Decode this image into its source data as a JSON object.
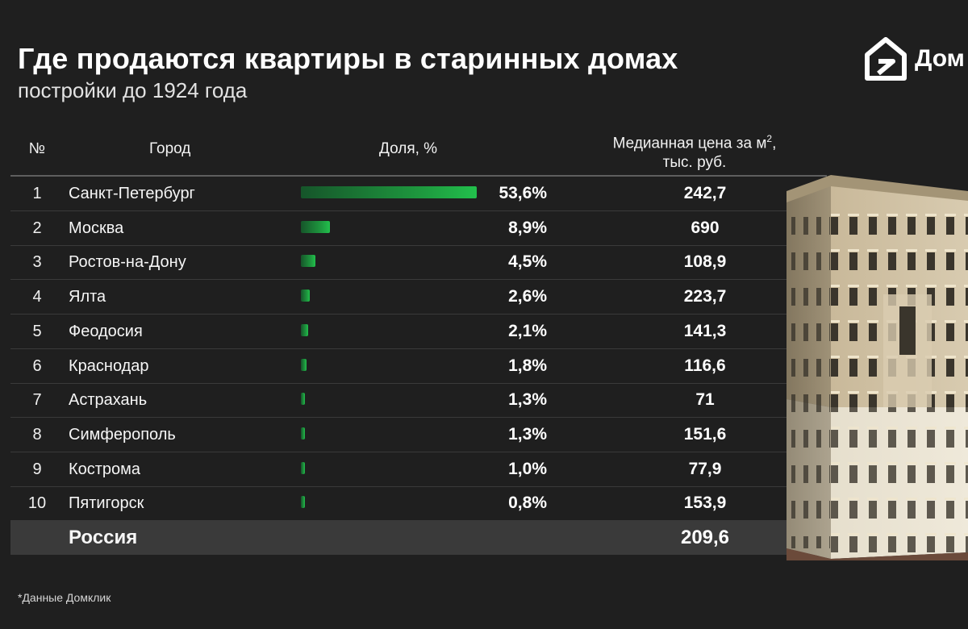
{
  "title": "Где продаются квартиры в старинных домах",
  "subtitle": "постройки до 1924 года",
  "brand": "Дом",
  "header": {
    "num": "№",
    "city": "Город",
    "share": "Доля, %",
    "price_line1": "Медианная цена за м",
    "price_sup": "2",
    "price_line1_tail": ",",
    "price_line2": "тыс. руб."
  },
  "chart_data": {
    "type": "table",
    "columns": [
      "№",
      "Город",
      "Доля, %",
      "Медианная цена за м², тыс. руб."
    ],
    "rows": [
      {
        "num": "1",
        "city": "Санкт-Петербург",
        "share": 53.6,
        "share_label": "53,6%",
        "price": "242,7"
      },
      {
        "num": "2",
        "city": "Москва",
        "share": 8.9,
        "share_label": "8,9%",
        "price": "690"
      },
      {
        "num": "3",
        "city": "Ростов-на-Дону",
        "share": 4.5,
        "share_label": "4,5%",
        "price": "108,9"
      },
      {
        "num": "4",
        "city": "Ялта",
        "share": 2.6,
        "share_label": "2,6%",
        "price": "223,7"
      },
      {
        "num": "5",
        "city": "Феодосия",
        "share": 2.1,
        "share_label": "2,1%",
        "price": "141,3"
      },
      {
        "num": "6",
        "city": "Краснодар",
        "share": 1.8,
        "share_label": "1,8%",
        "price": "116,6"
      },
      {
        "num": "7",
        "city": "Астрахань",
        "share": 1.3,
        "share_label": "1,3%",
        "price": "71"
      },
      {
        "num": "8",
        "city": "Симферополь",
        "share": 1.3,
        "share_label": "1,3%",
        "price": "151,6"
      },
      {
        "num": "9",
        "city": "Кострома",
        "share": 1.0,
        "share_label": "1,0%",
        "price": "77,9"
      },
      {
        "num": "10",
        "city": "Пятигорск",
        "share": 0.8,
        "share_label": "0,8%",
        "price": "153,9"
      }
    ],
    "total": {
      "city": "Россия",
      "price": "209,6"
    },
    "bar_color": "#22c04c"
  },
  "footnote": "*Данные Домклик",
  "colors": {
    "background": "#1f1f1f",
    "accent_green": "#22c04c",
    "total_row": "#3a3a3a"
  }
}
